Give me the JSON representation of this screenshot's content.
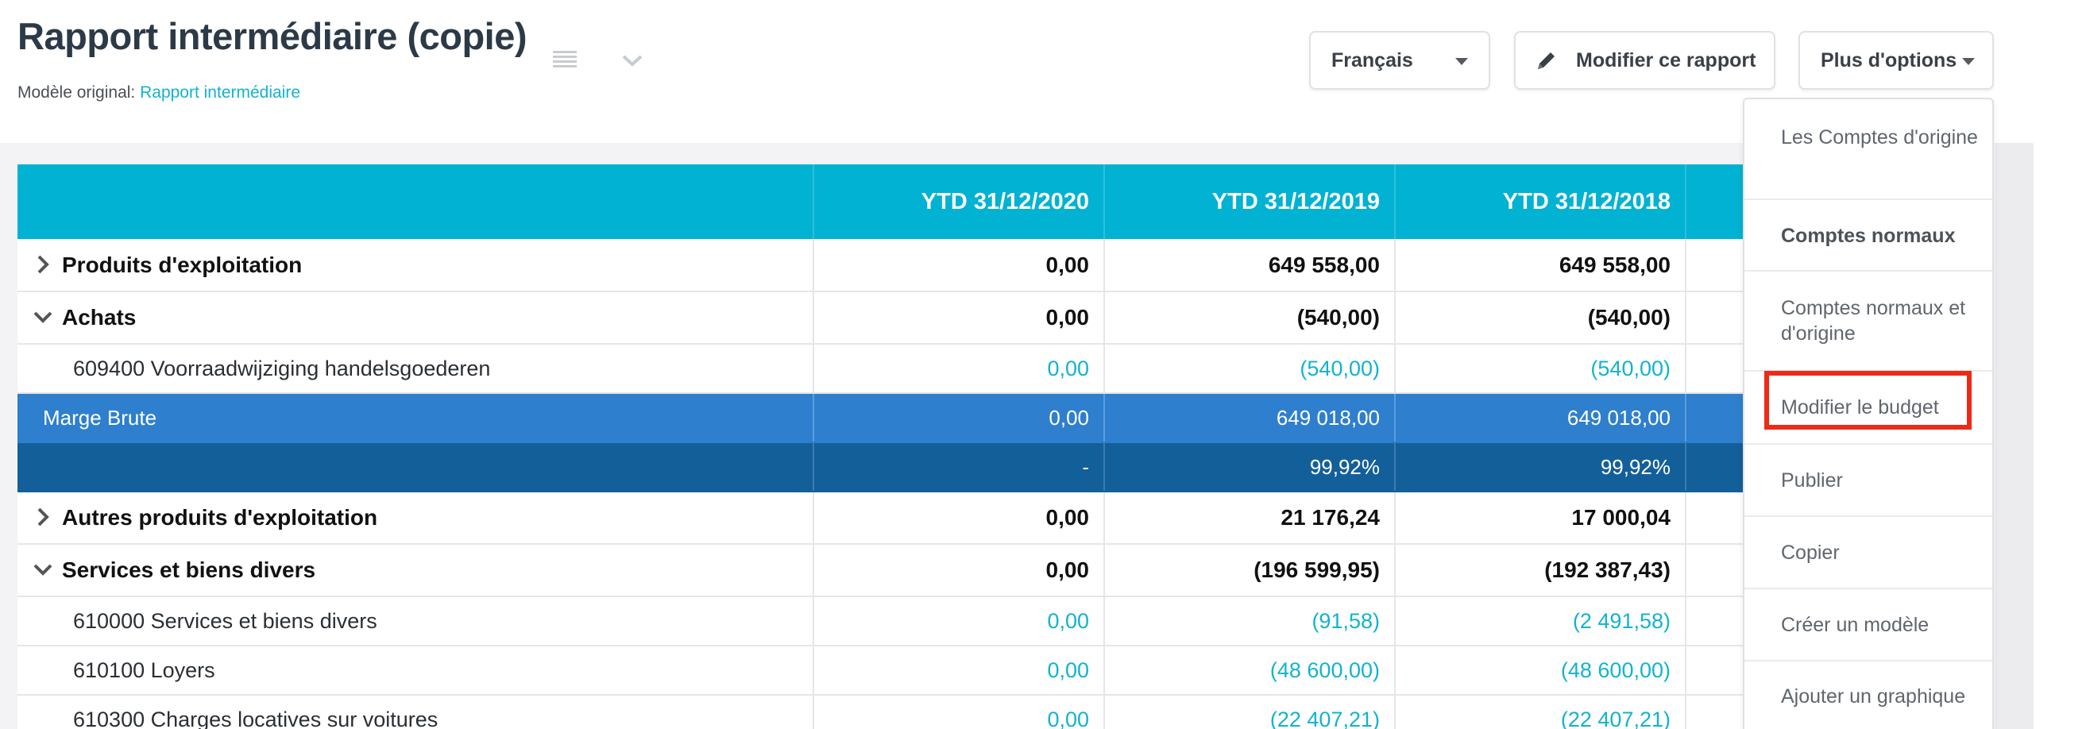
{
  "header": {
    "title": "Rapport intermédiaire (copie)",
    "subtitle_prefix": "Modèle original: ",
    "subtitle_link": "Rapport intermédiaire"
  },
  "toolbar": {
    "language": "Français",
    "edit_label": "Modifier ce rapport",
    "more_label": "Plus d'options"
  },
  "table": {
    "columns": [
      "",
      "YTD 31/12/2020",
      "YTD 31/12/2019",
      "YTD 31/12/2018",
      ""
    ],
    "rows": [
      {
        "label": "Produits d'exploitation",
        "v": [
          "0,00",
          "649 558,00",
          "649 558,00"
        ]
      },
      {
        "label": "Achats",
        "v": [
          "0,00",
          "(540,00)",
          "(540,00)"
        ]
      },
      {
        "label": "609400 Voorraadwijziging handelsgoederen",
        "v": [
          "0,00",
          "(540,00)",
          "(540,00)"
        ]
      },
      {
        "label": "Marge Brute",
        "v": [
          "0,00",
          "649 018,00",
          "649 018,00"
        ]
      },
      {
        "label": "",
        "v": [
          "-",
          "99,92%",
          "99,92%"
        ]
      },
      {
        "label": "Autres produits d'exploitation",
        "v": [
          "0,00",
          "21 176,24",
          "17 000,04"
        ]
      },
      {
        "label": "Services et biens divers",
        "v": [
          "0,00",
          "(196 599,95)",
          "(192 387,43)"
        ]
      },
      {
        "label": "610000 Services et biens divers",
        "v": [
          "0,00",
          "(91,58)",
          "(2 491,58)"
        ]
      },
      {
        "label": "610100 Loyers",
        "v": [
          "0,00",
          "(48 600,00)",
          "(48 600,00)"
        ]
      },
      {
        "label": "610300 Charges locatives sur voitures",
        "v": [
          "0,00",
          "(22 407,21)",
          "(22 407,21)"
        ]
      }
    ]
  },
  "menu": {
    "items": [
      "Les Comptes d'origine",
      "Comptes normaux",
      "Comptes normaux et d'origine",
      "Modifier le budget",
      "Publier",
      "Copier",
      "Créer un modèle",
      "Ajouter un graphique"
    ]
  },
  "colors": {
    "header_teal": "#02b2d2",
    "gross_margin_blue": "#2e7fcd",
    "percent_row_blue": "#135f9a",
    "link_cyan": "#12b3cf",
    "highlight_red": "#ee2a16"
  }
}
